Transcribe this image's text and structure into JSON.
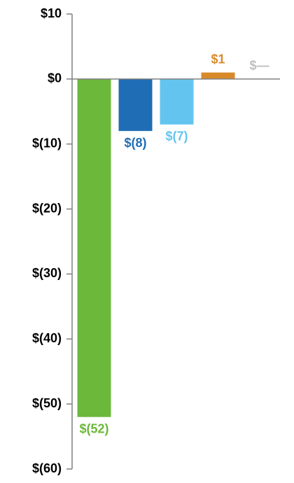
{
  "chart_data": {
    "type": "bar",
    "categories": [
      null,
      null,
      null,
      null,
      null
    ],
    "values": [
      -52,
      -8,
      -7,
      1,
      0
    ],
    "value_labels": [
      "$(52)",
      "$(8)",
      "$(7)",
      "$1",
      "$—"
    ],
    "colors": [
      "#6cb83a",
      "#1f6db5",
      "#63c5ef",
      "#d88a2a",
      "#bfbfbf"
    ],
    "ylim": [
      -60,
      10
    ],
    "yticks": [
      {
        "value": 10,
        "label": "$10"
      },
      {
        "value": 0,
        "label": "$0"
      },
      {
        "value": -10,
        "label": "$(10)"
      },
      {
        "value": -20,
        "label": "$(20)"
      },
      {
        "value": -30,
        "label": "$(30)"
      },
      {
        "value": -40,
        "label": "$(40)"
      },
      {
        "value": -50,
        "label": "$(50)"
      },
      {
        "value": -60,
        "label": "$(60)"
      }
    ],
    "grid": false
  }
}
